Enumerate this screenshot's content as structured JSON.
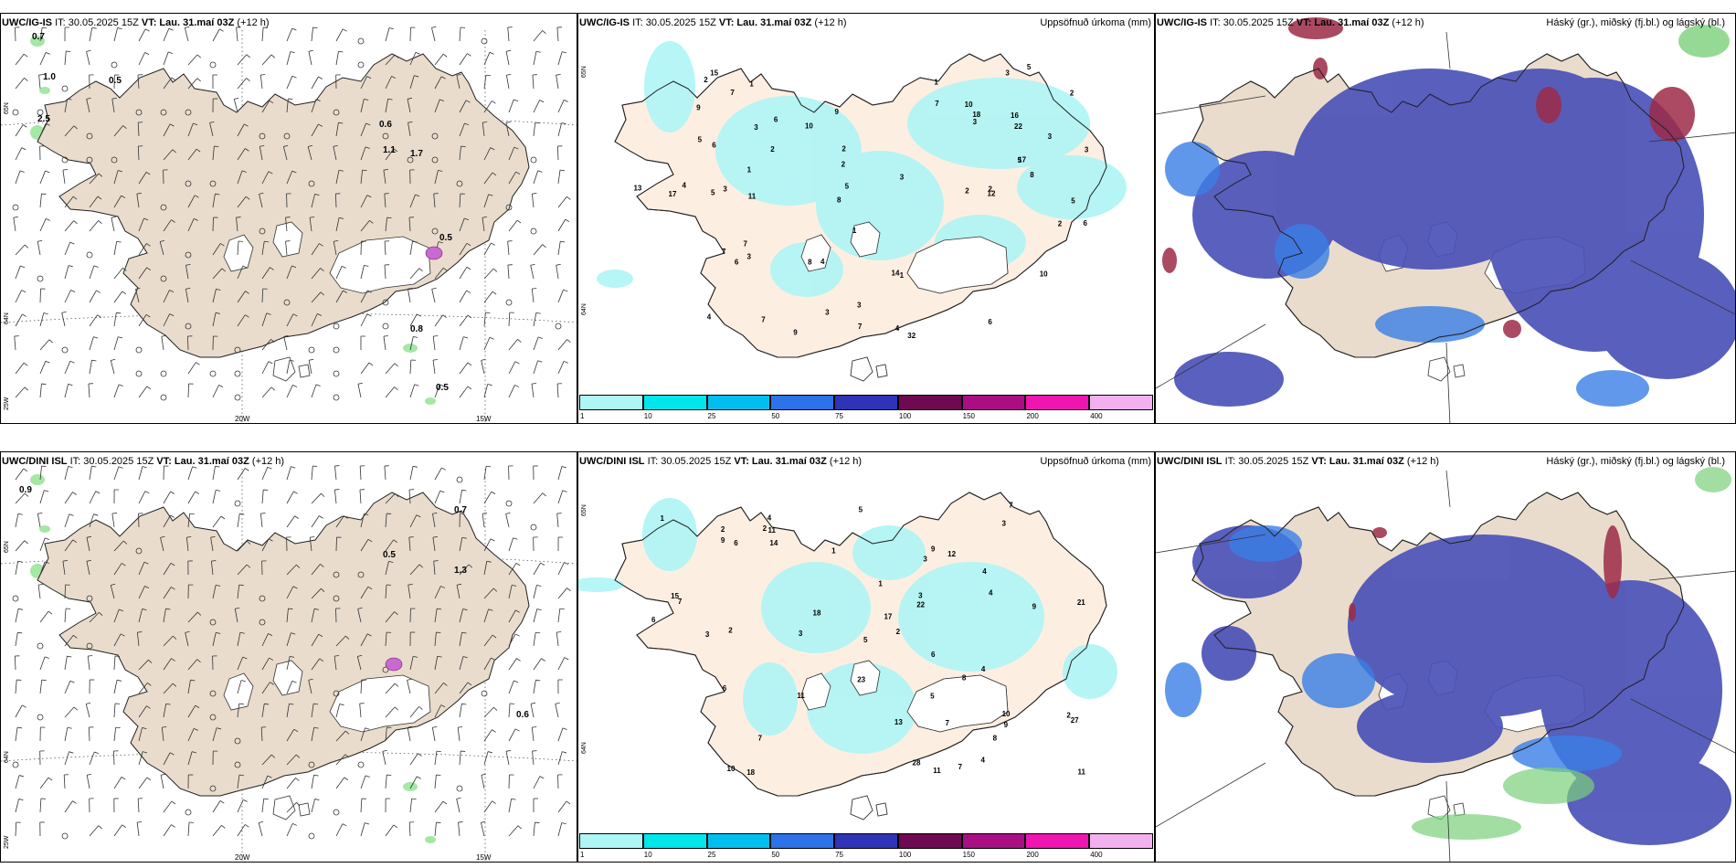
{
  "colors": {
    "land_wind": "#e9dccc",
    "land_precip": "#fdeee2",
    "precip_light": "#aef5f5",
    "cloud_mid": "#4b52b8",
    "cloud_low": "#3a7ee6",
    "cloud_high": "#9c2a47",
    "green": "#8fe28f"
  },
  "panels": [
    {
      "id": "p1",
      "model": "UWC/IG-IS",
      "it_label": "IT: 30.05.2025 15Z",
      "vt_prefix": "VT:",
      "vt": "Lau. 31.maí 03Z",
      "lead": "(+12 h)",
      "right_title": "",
      "lat_labels": [
        "65N",
        "64N",
        "25W"
      ],
      "lon_labels": [
        "20W",
        "15W"
      ],
      "values": [
        "0.7",
        "1.0",
        "0.5",
        "2.5",
        "0.6",
        "1.1",
        "1.7",
        "0.5",
        "0.8",
        "0.5"
      ]
    },
    {
      "id": "p2",
      "model": "UWC/IG-IS",
      "it_label": "IT: 30.05.2025 15Z",
      "vt_prefix": "VT:",
      "vt": "Lau. 31.maí 03Z",
      "lead": "(+12 h)",
      "right_title": "Uppsöfnuð úrkoma (mm)",
      "lat_labels": [
        "65N",
        "64N"
      ],
      "values": [
        "2",
        "6",
        "2",
        "1",
        "3",
        "10",
        "8",
        "7",
        "4",
        "5",
        "6",
        "7",
        "9",
        "3",
        "2",
        "1",
        "2",
        "4",
        "3",
        "14",
        "9",
        "7",
        "12",
        "8",
        "10",
        "3",
        "6",
        "5",
        "22",
        "17",
        "7",
        "10",
        "2",
        "2",
        "5",
        "1",
        "5",
        "6",
        "11",
        "15",
        "13",
        "18",
        "3",
        "4",
        "6",
        "8",
        "3",
        "5",
        "2",
        "3",
        "4",
        "1",
        "7",
        "9",
        "32",
        "17",
        "16",
        "7",
        "3",
        "3",
        "5",
        "3",
        "1",
        "2"
      ]
    },
    {
      "id": "p3",
      "model": "UWC/IG-IS",
      "it_label": "IT: 30.05.2025 15Z",
      "vt_prefix": "VT:",
      "vt": "Lau. 31.maí 03Z",
      "lead": "(+12 h)",
      "right_title": "Háský (gr.), miðský (fj.bl.) og lágský (bl.)"
    },
    {
      "id": "p4",
      "model": "UWC/DINI ISL",
      "it_label": "IT: 30.05.2025 15Z",
      "vt_prefix": "VT:",
      "vt": "Lau. 31.maí 03Z",
      "lead": "(+12 h)",
      "right_title": "",
      "lat_labels": [
        "65N",
        "64N",
        "25W"
      ],
      "lon_labels": [
        "20W",
        "15W"
      ],
      "values": [
        "0.9",
        "0.7",
        "0.5",
        "1.3",
        "0.6"
      ]
    },
    {
      "id": "p5",
      "model": "UWC/DINI ISL",
      "it_label": "IT: 30.05.2025 15Z",
      "vt_prefix": "VT:",
      "vt": "Lau. 31.maí 03Z",
      "lead": "(+12 h)",
      "right_title": "Uppsöfnuð úrkoma (mm)",
      "lat_labels": [
        "65N",
        "64N"
      ],
      "values": [
        "1",
        "4",
        "4",
        "7",
        "9",
        "5",
        "9",
        "3",
        "11",
        "6",
        "4",
        "10",
        "7",
        "23",
        "8",
        "9",
        "10",
        "18",
        "12",
        "8",
        "7",
        "4",
        "5",
        "9",
        "15",
        "17",
        "11",
        "11",
        "3",
        "6",
        "14",
        "28",
        "21",
        "18",
        "11",
        "2",
        "2",
        "6",
        "3",
        "2",
        "22",
        "27",
        "3",
        "5",
        "7",
        "1",
        "2",
        "3",
        "4",
        "1",
        "2",
        "13",
        "7",
        "6"
      ]
    },
    {
      "id": "p6",
      "model": "UWC/DINI ISL",
      "it_label": "IT: 30.05.2025 15Z",
      "vt_prefix": "VT:",
      "vt": "Lau. 31.maí 03Z",
      "lead": "(+12 h)",
      "right_title": "Háský (gr.), miðský (fj.bl.) og lágský (bl.)"
    }
  ],
  "legend": {
    "labels": [
      "1",
      "10",
      "25",
      "50",
      "75",
      "100",
      "150",
      "200",
      "400"
    ],
    "colors": [
      "#aef5f5",
      "#00e6ea",
      "#00bfee",
      "#2d72e8",
      "#2f33b8",
      "#6d0a52",
      "#a90f83",
      "#ee15b1",
      "#f3b0ef"
    ]
  }
}
